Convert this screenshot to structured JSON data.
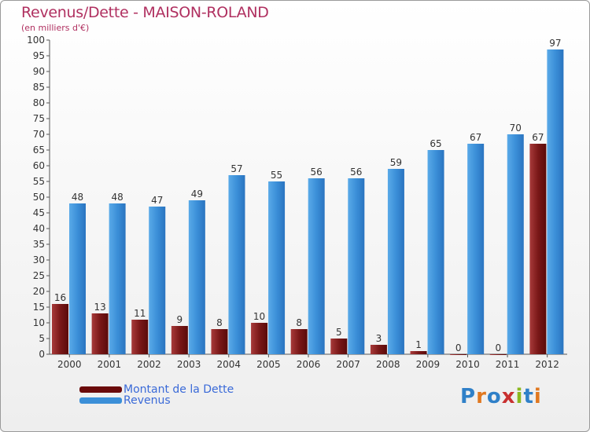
{
  "chart_data": {
    "type": "bar",
    "title": "Revenus/Dette - MAISON-ROLAND",
    "subtitle": "(en milliers d'€)",
    "categories": [
      "2000",
      "2001",
      "2002",
      "2003",
      "2004",
      "2005",
      "2006",
      "2007",
      "2008",
      "2009",
      "2010",
      "2011",
      "2012"
    ],
    "series": [
      {
        "name": "Montant de la Dette",
        "values": [
          16,
          13,
          11,
          9,
          8,
          10,
          8,
          5,
          3,
          1,
          0,
          0,
          67
        ],
        "color": "#7a1414"
      },
      {
        "name": "Revenus",
        "values": [
          48,
          48,
          47,
          49,
          57,
          55,
          56,
          56,
          59,
          65,
          67,
          70,
          97
        ],
        "color": "#3b8fd8"
      }
    ],
    "ylim": [
      0,
      100
    ],
    "yticks": [
      0,
      5,
      10,
      15,
      20,
      25,
      30,
      35,
      40,
      45,
      50,
      55,
      60,
      65,
      70,
      75,
      80,
      85,
      90,
      95,
      100
    ],
    "grid": false,
    "legend": "bottom-left"
  },
  "logo": {
    "letters": [
      "P",
      "r",
      "o",
      "x",
      "i",
      "t",
      "i"
    ],
    "colors": [
      "#2f80c8",
      "#e07820",
      "#2f80c8",
      "#c83030",
      "#8cb820",
      "#2f80c8",
      "#e07820"
    ]
  }
}
